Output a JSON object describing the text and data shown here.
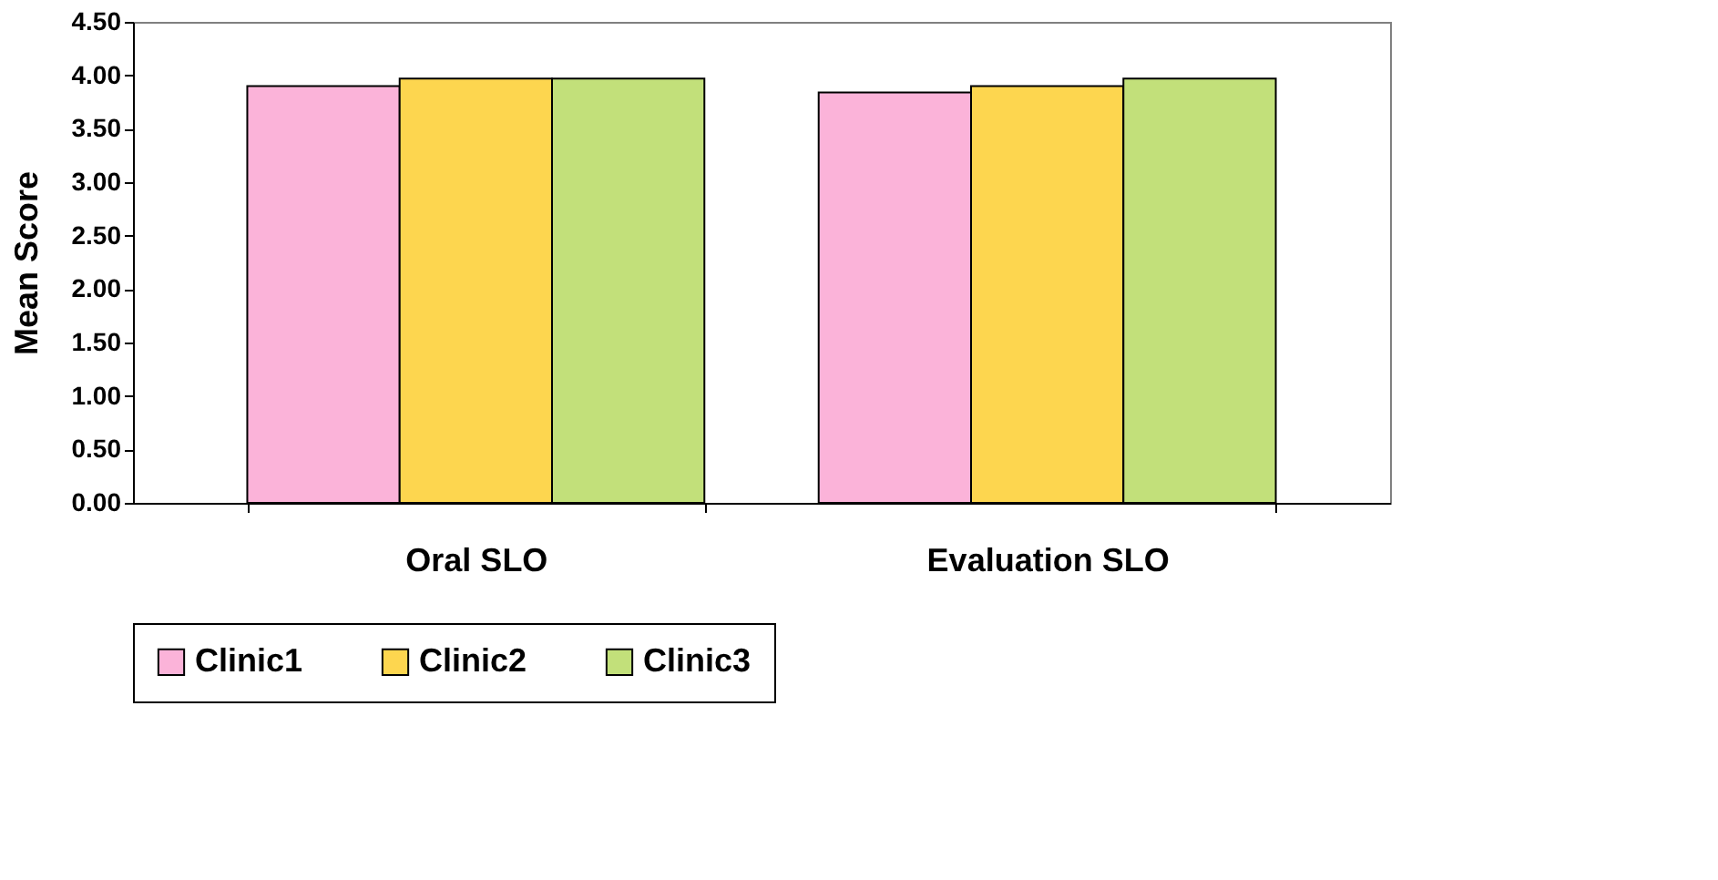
{
  "chart_data": {
    "type": "bar",
    "ylabel": "Mean Score",
    "categories": [
      "Oral SLO",
      "Evaluation SLO"
    ],
    "series": [
      {
        "name": "Clinic1",
        "color": "#fbb3d9",
        "values": [
          3.9,
          3.84
        ]
      },
      {
        "name": "Clinic2",
        "color": "#fdd64f",
        "values": [
          3.97,
          3.9
        ]
      },
      {
        "name": "Clinic3",
        "color": "#c2e07a",
        "values": [
          3.97,
          3.97
        ]
      }
    ],
    "ylim": [
      0,
      4.5
    ],
    "yticks": [
      {
        "value": 0,
        "label": "0.00"
      },
      {
        "value": 0.5,
        "label": "0.50"
      },
      {
        "value": 1,
        "label": "1.00"
      },
      {
        "value": 1.5,
        "label": "1.50"
      },
      {
        "value": 2,
        "label": "2.00"
      },
      {
        "value": 2.5,
        "label": "2.50"
      },
      {
        "value": 3,
        "label": "3.00"
      },
      {
        "value": 3.5,
        "label": "3.50"
      },
      {
        "value": 4,
        "label": "4.00"
      },
      {
        "value": 4.5,
        "label": "4.50"
      }
    ],
    "grid": false,
    "legend": "bottom"
  }
}
